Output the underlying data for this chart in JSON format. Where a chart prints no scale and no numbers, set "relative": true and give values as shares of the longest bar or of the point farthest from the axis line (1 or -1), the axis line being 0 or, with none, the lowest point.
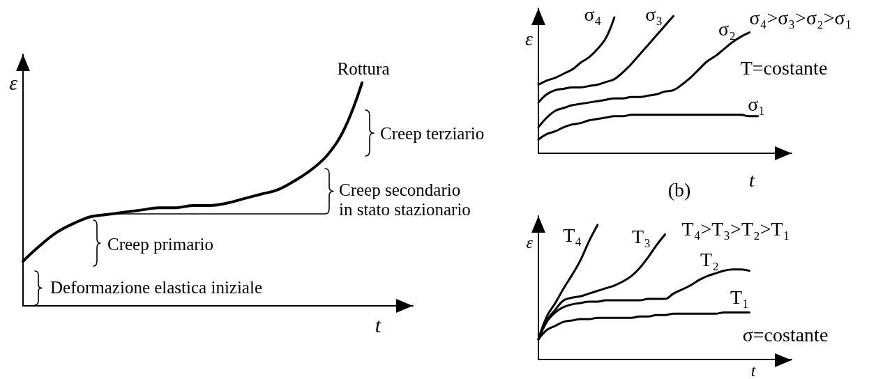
{
  "chart_data": [
    {
      "type": "line",
      "relative": true,
      "xlabel": "t",
      "ylabel": "ε",
      "marker": "none",
      "categories": [
        null,
        null,
        null,
        null,
        null,
        null,
        null,
        null,
        null,
        null,
        null,
        null,
        null,
        null,
        null,
        null,
        null,
        null,
        null,
        null,
        null,
        null,
        null,
        null
      ],
      "series": [
        {
          "color": "#000000",
          "values": [
            0.2,
            0.27,
            0.33,
            0.37,
            0.4,
            0.41,
            0.42,
            0.43,
            0.44,
            0.44,
            0.45,
            0.45,
            0.46,
            0.48,
            0.5,
            0.52,
            0.56,
            0.61,
            0.68,
            0.8,
            1,
            null,
            null,
            null
          ]
        }
      ],
      "annotations": [
        "Rottura",
        "Creep terziario",
        "Creep secondario\nin stato stazionario",
        "Creep primario",
        "Deformazione elastica iniziale"
      ]
    },
    {
      "type": "line",
      "relative": true,
      "xlabel": "t",
      "ylabel": "ε",
      "marker": "none",
      "categories": [
        null,
        null,
        null,
        null,
        null,
        null,
        null,
        null,
        null,
        null,
        null,
        null,
        null,
        null,
        null,
        null,
        null,
        null,
        null,
        null,
        null,
        null,
        null,
        null,
        null,
        null,
        null,
        null,
        null,
        null,
        null
      ],
      "series": [
        {
          "name": "σ₄",
          "color": "#000000",
          "values": [
            0.5,
            0.53,
            0.55,
            0.58,
            0.61,
            0.66,
            0.7,
            0.76,
            0.84,
            0.99,
            null,
            null,
            null,
            null,
            null,
            null,
            null,
            null,
            null,
            null,
            null,
            null,
            null,
            null,
            null,
            null,
            null,
            null,
            null,
            null,
            null
          ]
        },
        {
          "name": "σ₃",
          "color": "#000000",
          "values": [
            0.37,
            0.43,
            0.46,
            0.47,
            0.48,
            0.48,
            0.49,
            0.5,
            0.52,
            0.54,
            0.59,
            0.65,
            0.72,
            0.79,
            0.86,
            0.93,
            1,
            null,
            null,
            null,
            null,
            null,
            null,
            null,
            null,
            null,
            null,
            null,
            null,
            null,
            null
          ]
        },
        {
          "name": "σ₂",
          "color": "#000000",
          "values": [
            0.19,
            0.26,
            0.31,
            0.33,
            0.35,
            0.36,
            0.37,
            0.38,
            0.39,
            0.4,
            0.4,
            0.41,
            0.41,
            0.42,
            0.43,
            0.45,
            0.46,
            0.5,
            0.55,
            0.61,
            0.67,
            0.71,
            0.76,
            0.81,
            0.85,
            0.88,
            null,
            null,
            null,
            null,
            null
          ]
        },
        {
          "name": "σ₁",
          "color": "#000000",
          "values": [
            0.1,
            0.14,
            0.16,
            0.19,
            0.21,
            0.22,
            0.24,
            0.25,
            0.26,
            0.27,
            0.27,
            0.28,
            0.28,
            0.28,
            0.28,
            0.28,
            0.28,
            0.28,
            0.28,
            0.28,
            0.28,
            0.28,
            0.28,
            0.28,
            0.28,
            0.27,
            0.27,
            null,
            null,
            null,
            null
          ]
        }
      ],
      "annotations": [
        "σ₄>σ₃>σ₂>σ₁",
        "T=costante",
        "(b)"
      ]
    },
    {
      "type": "line",
      "relative": true,
      "xlabel": "t",
      "ylabel": "ε",
      "marker": "none",
      "categories": [
        null,
        null,
        null,
        null,
        null,
        null,
        null,
        null,
        null,
        null,
        null,
        null,
        null,
        null,
        null,
        null,
        null,
        null,
        null,
        null,
        null,
        null,
        null,
        null,
        null,
        null,
        null,
        null,
        null,
        null,
        null
      ],
      "series": [
        {
          "name": "T₄",
          "color": "#000000",
          "values": [
            0.15,
            0.32,
            0.42,
            0.53,
            0.63,
            0.74,
            0.88,
            1,
            null,
            null,
            null,
            null,
            null,
            null,
            null,
            null,
            null,
            null,
            null,
            null,
            null,
            null,
            null,
            null,
            null,
            null,
            null,
            null,
            null,
            null,
            null
          ]
        },
        {
          "name": "T₃",
          "color": "#000000",
          "values": [
            0.15,
            0.29,
            0.37,
            0.44,
            0.46,
            0.47,
            0.49,
            0.51,
            0.53,
            0.55,
            0.58,
            0.62,
            0.68,
            0.76,
            0.85,
            0.93,
            null,
            null,
            null,
            null,
            null,
            null,
            null,
            null,
            null,
            null,
            null,
            null,
            null,
            null,
            null
          ]
        },
        {
          "name": "T₂",
          "color": "#000000",
          "values": [
            0.15,
            0.28,
            0.35,
            0.39,
            0.41,
            0.42,
            0.43,
            0.43,
            0.44,
            0.44,
            0.44,
            0.44,
            0.44,
            0.45,
            0.45,
            0.45,
            0.49,
            0.52,
            0.55,
            0.59,
            0.62,
            0.64,
            0.66,
            0.67,
            0.67,
            0.66,
            null,
            null,
            null,
            null,
            null
          ]
        },
        {
          "name": "T₁",
          "color": "#000000",
          "values": [
            0.15,
            0.22,
            0.25,
            0.28,
            0.29,
            0.3,
            0.3,
            0.31,
            0.31,
            0.31,
            0.31,
            0.31,
            0.32,
            0.32,
            0.33,
            0.33,
            0.34,
            0.34,
            0.34,
            0.34,
            0.34,
            0.34,
            0.35,
            0.35,
            0.35,
            0.35,
            null,
            null,
            null,
            null,
            null
          ]
        }
      ],
      "annotations": [
        "T₄>T₃>T₂>T₁",
        "σ=costante"
      ]
    }
  ]
}
